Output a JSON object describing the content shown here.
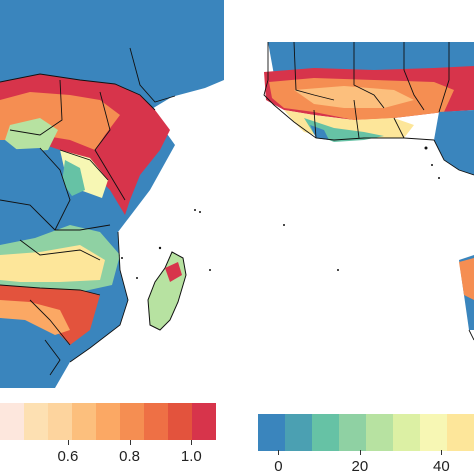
{
  "colors": {
    "water": "#3a85bd",
    "land_no_data": "#ffffff",
    "border": "#111111"
  },
  "legend_left": {
    "ticks": [
      "0.6",
      "0.8",
      "1.0"
    ],
    "tick_values": [
      0.6,
      0.8,
      1.0
    ],
    "range": [
      0.38,
      1.08
    ],
    "colors": [
      "#fde7dd",
      "#fde0b2",
      "#fdd49e",
      "#fcbf7d",
      "#fba864",
      "#f58e52",
      "#ee7045",
      "#e3533d",
      "#d7344b"
    ]
  },
  "legend_right": {
    "ticks": [
      "0",
      "20",
      "40"
    ],
    "tick_values": [
      0,
      20,
      40
    ],
    "range": [
      -5,
      48
    ],
    "colors": [
      "#3a85bd",
      "#4ba0b2",
      "#66c2a5",
      "#8fd1a3",
      "#b7e2a1",
      "#dcf0a4",
      "#f7f7b4",
      "#fde69a"
    ]
  }
}
